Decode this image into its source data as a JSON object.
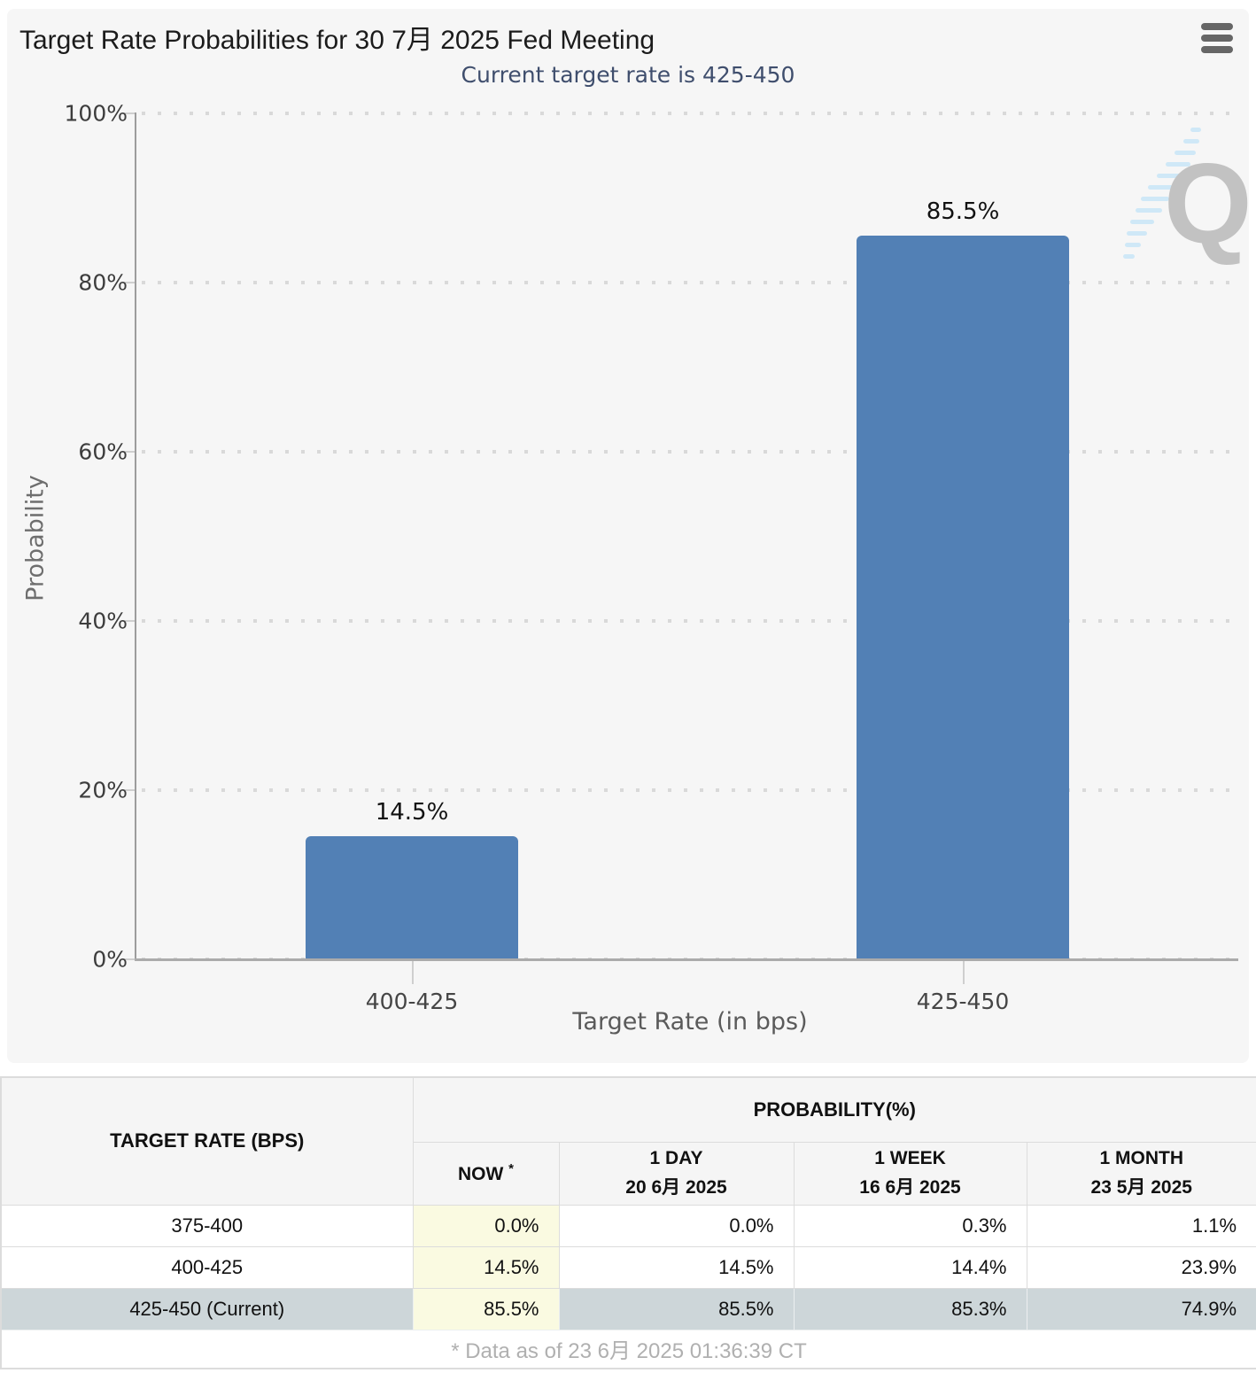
{
  "chart_data": {
    "type": "bar",
    "title": "Target Rate Probabilities for 30 7月 2025 Fed Meeting",
    "subtitle": "Current target rate is 425-450",
    "categories": [
      "400-425",
      "425-450"
    ],
    "values": [
      14.5,
      85.5
    ],
    "value_labels": [
      "14.5%",
      "85.5%"
    ],
    "xlabel": "Target Rate (in bps)",
    "ylabel": "Probability",
    "ylim": [
      0,
      100
    ],
    "yticks": [
      "0%",
      "20%",
      "40%",
      "60%",
      "80%",
      "100%"
    ],
    "grid": "horizontal-dotted",
    "legend": "none",
    "bar_color": "#5280b5",
    "watermark_letter": "Q"
  },
  "table": {
    "col1_header": "TARGET RATE (BPS)",
    "group_header": "PROBABILITY(%)",
    "columns": [
      {
        "label": "NOW",
        "sup": "*"
      },
      {
        "label": "1 DAY",
        "date": "20 6月 2025"
      },
      {
        "label": "1 WEEK",
        "date": "16 6月 2025"
      },
      {
        "label": "1 MONTH",
        "date": "23 5月 2025"
      }
    ],
    "rows": [
      {
        "rate": "375-400",
        "values": [
          "0.0%",
          "0.0%",
          "0.3%",
          "1.1%"
        ],
        "current": false
      },
      {
        "rate": "400-425",
        "values": [
          "14.5%",
          "14.5%",
          "14.4%",
          "23.9%"
        ],
        "current": false
      },
      {
        "rate": "425-450 (Current)",
        "values": [
          "85.5%",
          "85.5%",
          "85.3%",
          "74.9%"
        ],
        "current": true
      }
    ],
    "footnote": "* Data as of 23 6月 2025 01:36:39 CT"
  },
  "colors": {
    "bar": "#5280b5",
    "panel_background": "#f6f6f6",
    "subtitle_text": "#3f4e6d",
    "now_column_highlight": "#fafae1",
    "current_row_background": "#cdd6d9",
    "table_border": "#dcdcdc",
    "footnote_text": "#b0b0b0"
  }
}
